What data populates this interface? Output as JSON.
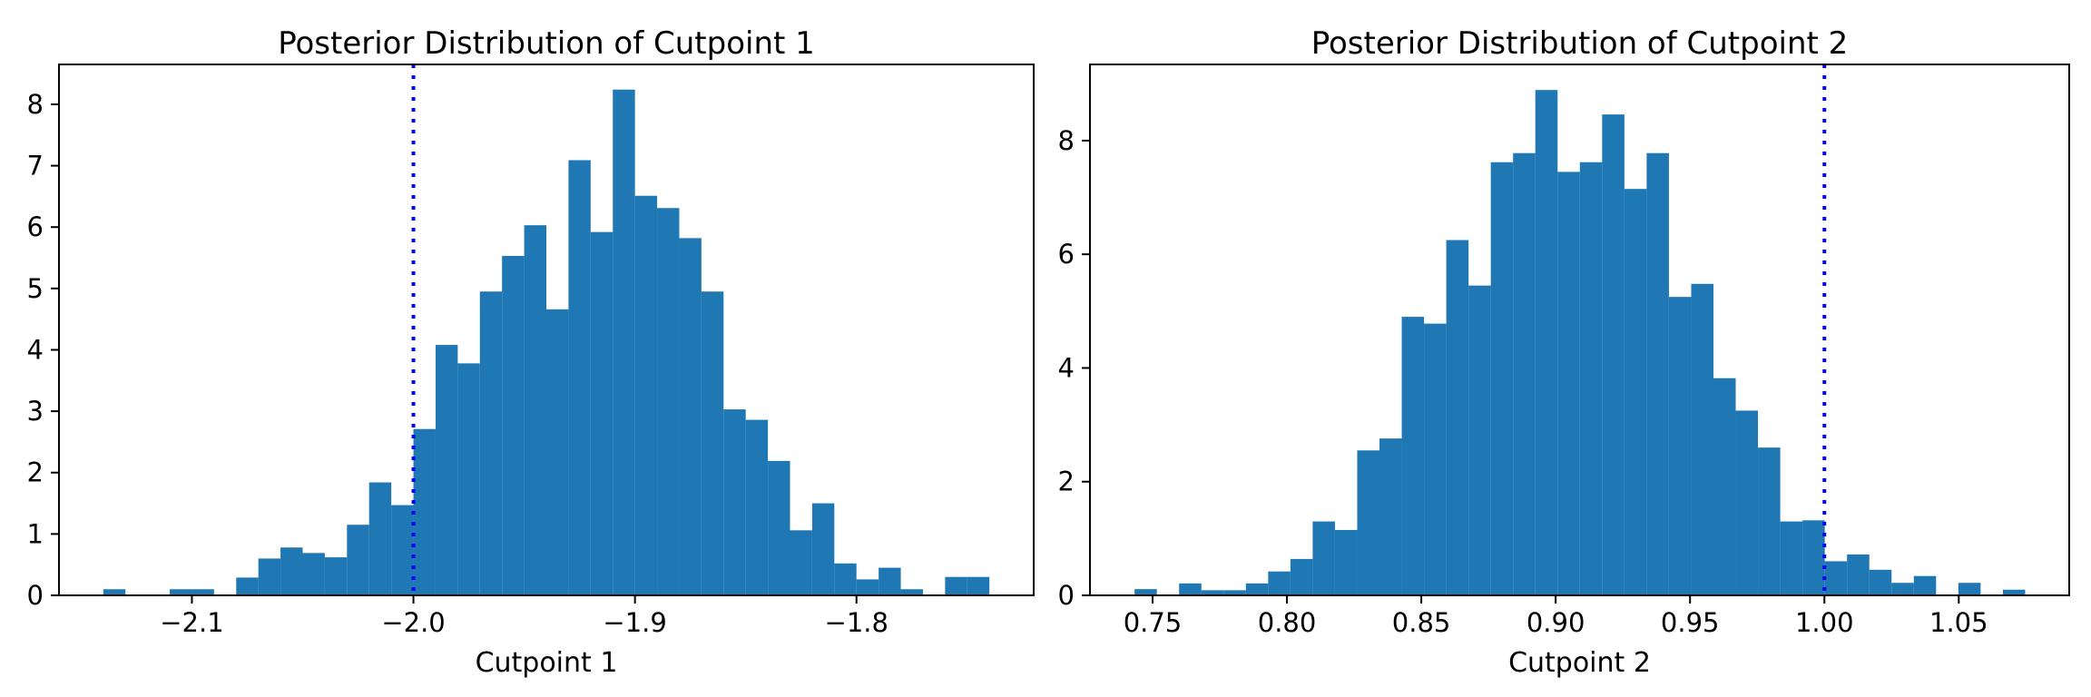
{
  "figure": {
    "background": "#ffffff",
    "kind": "matplotlib-style double histogram figure"
  },
  "chart_data": [
    {
      "type": "bar",
      "subtype": "histogram",
      "title": "Posterior Distribution of Cutpoint 1",
      "xlabel": "Cutpoint 1",
      "ylabel": "",
      "bar_color": "#1f77b4",
      "bin_start": -2.14,
      "bin_width": 0.01,
      "heights": [
        0.1,
        0,
        0,
        0.1,
        0.1,
        0,
        0.29,
        0.6,
        0.78,
        0.69,
        0.62,
        1.15,
        1.84,
        1.47,
        2.71,
        4.08,
        3.78,
        4.95,
        5.53,
        6.03,
        4.66,
        7.09,
        5.92,
        8.24,
        6.51,
        6.31,
        5.82,
        4.95,
        3.03,
        2.86,
        2.19,
        1.06,
        1.5,
        0.52,
        0.26,
        0.45,
        0.1,
        0,
        0.3,
        0.3
      ],
      "vline_x": -2.0,
      "vline_color": "#0000ff",
      "vline_style": "dotted",
      "xlim": [
        -2.16,
        -1.72
      ],
      "ylim": [
        0,
        8.65
      ],
      "xticks": [
        -2.1,
        -2.0,
        -1.9,
        -1.8
      ],
      "xtick_labels": [
        "−2.1",
        "−2.0",
        "−1.9",
        "−1.8"
      ],
      "yticks": [
        0,
        1,
        2,
        3,
        4,
        5,
        6,
        7,
        8
      ],
      "ytick_labels": [
        "0",
        "1",
        "2",
        "3",
        "4",
        "5",
        "6",
        "7",
        "8"
      ],
      "grid": false,
      "legend": null
    },
    {
      "type": "bar",
      "subtype": "histogram",
      "title": "Posterior Distribution of Cutpoint 2",
      "xlabel": "Cutpoint 2",
      "ylabel": "",
      "bar_color": "#1f77b4",
      "bin_start": 0.7433,
      "bin_width": 0.008285,
      "heights": [
        0.11,
        0,
        0.21,
        0.09,
        0.09,
        0.21,
        0.42,
        0.64,
        1.3,
        1.15,
        2.55,
        2.76,
        4.9,
        4.78,
        6.25,
        5.45,
        7.62,
        7.78,
        8.89,
        7.45,
        7.62,
        8.46,
        7.15,
        7.78,
        5.25,
        5.48,
        3.82,
        3.25,
        2.6,
        1.3,
        1.32,
        0.6,
        0.72,
        0.45,
        0.22,
        0.34,
        0,
        0.22,
        0,
        0.1
      ],
      "vline_x": 1.0,
      "vline_color": "#0000ff",
      "vline_style": "dotted",
      "xlim": [
        0.7267,
        1.0911
      ],
      "ylim": [
        0,
        9.34
      ],
      "xticks": [
        0.75,
        0.8,
        0.85,
        0.9,
        0.95,
        1.0,
        1.05
      ],
      "xtick_labels": [
        "0.75",
        "0.80",
        "0.85",
        "0.90",
        "0.95",
        "1.00",
        "1.05"
      ],
      "yticks": [
        0,
        2,
        4,
        6,
        8
      ],
      "ytick_labels": [
        "0",
        "2",
        "4",
        "6",
        "8"
      ],
      "grid": false,
      "legend": null
    }
  ]
}
